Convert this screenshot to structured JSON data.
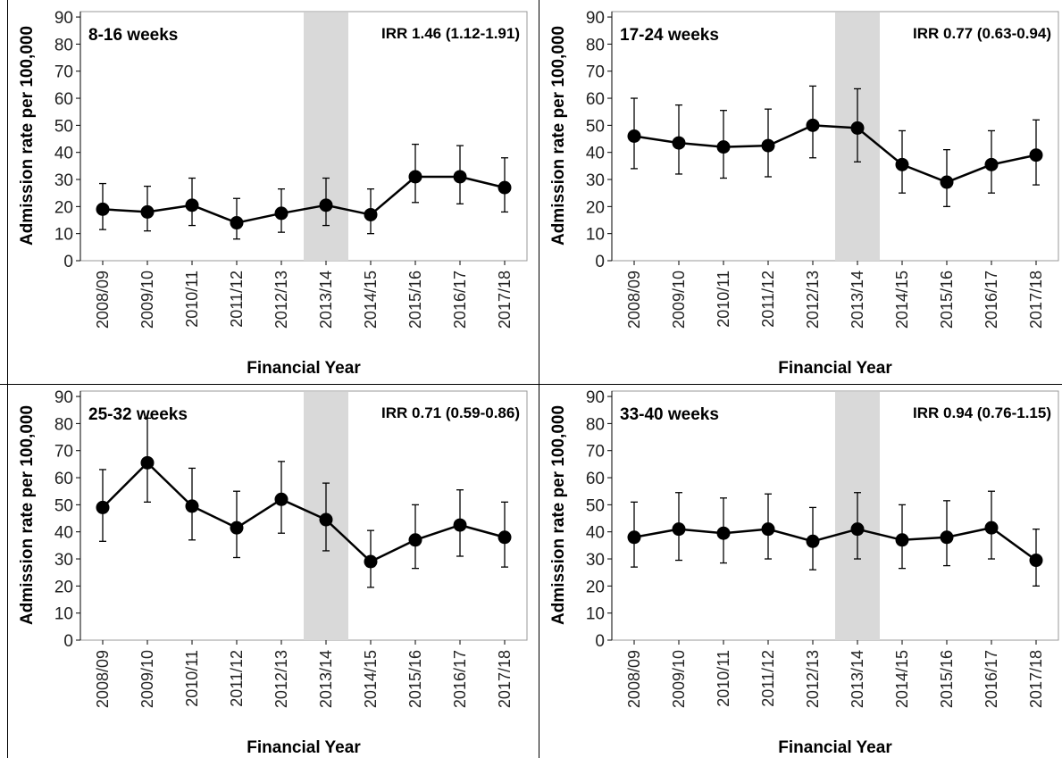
{
  "figure": {
    "ylabel": "Admission rate per 100,000",
    "xlabel": "Financial Year",
    "categories": [
      "2008/09",
      "2009/10",
      "2010/11",
      "2011/12",
      "2012/13",
      "2013/14",
      "2014/15",
      "2015/16",
      "2016/17",
      "2017/18"
    ],
    "y_ticks": [
      0,
      10,
      20,
      30,
      40,
      50,
      60,
      70,
      80,
      90
    ],
    "colors": {
      "line": "#000000",
      "shade": "#d9d9d9",
      "frame": "#999999"
    }
  },
  "chart_data": [
    {
      "type": "line",
      "title": "8-16 weeks",
      "annotation": "IRR 1.46 (1.12-1.91)",
      "xlabel": "Financial Year",
      "ylabel": "Admission rate per 100,000",
      "ylim": [
        0,
        92
      ],
      "highlighted_category": "2013/14",
      "categories": [
        "2008/09",
        "2009/10",
        "2010/11",
        "2011/12",
        "2012/13",
        "2013/14",
        "2014/15",
        "2015/16",
        "2016/17",
        "2017/18"
      ],
      "values": [
        19,
        18,
        20.5,
        14,
        17.5,
        20.5,
        17,
        31,
        31,
        27
      ],
      "ci_low": [
        11.5,
        11,
        13,
        8,
        10.5,
        13,
        10,
        21.5,
        21,
        18
      ],
      "ci_high": [
        28.5,
        27.5,
        30.5,
        23,
        26.5,
        30.5,
        26.5,
        43,
        42.5,
        38
      ]
    },
    {
      "type": "line",
      "title": "17-24 weeks",
      "annotation": "IRR 0.77 (0.63-0.94)",
      "xlabel": "Financial Year",
      "ylabel": "Admission rate per 100,000",
      "ylim": [
        0,
        92
      ],
      "highlighted_category": "2013/14",
      "categories": [
        "2008/09",
        "2009/10",
        "2010/11",
        "2011/12",
        "2012/13",
        "2013/14",
        "2014/15",
        "2015/16",
        "2016/17",
        "2017/18"
      ],
      "values": [
        46,
        43.5,
        42,
        42.5,
        50,
        49,
        35.5,
        29,
        35.5,
        39
      ],
      "ci_low": [
        34,
        32,
        30.5,
        31,
        38,
        36.5,
        25,
        20,
        25,
        28
      ],
      "ci_high": [
        60,
        57.5,
        55.5,
        56,
        64.5,
        63.5,
        48,
        41,
        48,
        52
      ]
    },
    {
      "type": "line",
      "title": "25-32 weeks",
      "annotation": "IRR 0.71 (0.59-0.86)",
      "xlabel": "Financial Year",
      "ylabel": "Admission rate per 100,000",
      "ylim": [
        0,
        92
      ],
      "highlighted_category": "2013/14",
      "categories": [
        "2008/09",
        "2009/10",
        "2010/11",
        "2011/12",
        "2012/13",
        "2013/14",
        "2014/15",
        "2015/16",
        "2016/17",
        "2017/18"
      ],
      "values": [
        49,
        65.5,
        49.5,
        41.5,
        52,
        44.5,
        29,
        37,
        42.5,
        38
      ],
      "ci_low": [
        36.5,
        51,
        37,
        30.5,
        39.5,
        33,
        19.5,
        26.5,
        31,
        27
      ],
      "ci_high": [
        63,
        82,
        63.5,
        55,
        66,
        58,
        40.5,
        50,
        55.5,
        51
      ]
    },
    {
      "type": "line",
      "title": "33-40 weeks",
      "annotation": "IRR 0.94 (0.76-1.15)",
      "xlabel": "Financial Year",
      "ylabel": "Admission rate per 100,000",
      "ylim": [
        0,
        92
      ],
      "highlighted_category": "2013/14",
      "categories": [
        "2008/09",
        "2009/10",
        "2010/11",
        "2011/12",
        "2012/13",
        "2013/14",
        "2014/15",
        "2015/16",
        "2016/17",
        "2017/18"
      ],
      "values": [
        38,
        41,
        39.5,
        41,
        36.5,
        41,
        37,
        38,
        41.5,
        29.5
      ],
      "ci_low": [
        27,
        29.5,
        28.5,
        30,
        26,
        30,
        26.5,
        27.5,
        30,
        20
      ],
      "ci_high": [
        51,
        54.5,
        52.5,
        54,
        49,
        54.5,
        50,
        51.5,
        55,
        41
      ]
    }
  ]
}
